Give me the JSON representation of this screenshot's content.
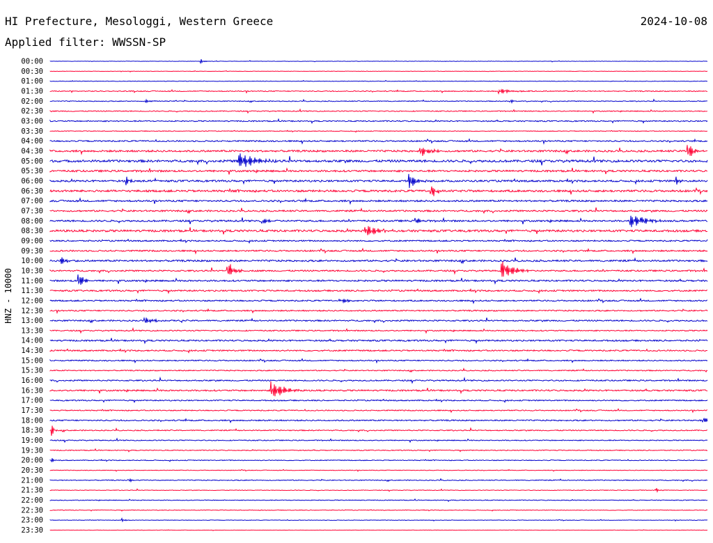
{
  "header": {
    "station": "HI Prefecture, Mesologgi, Western Greece",
    "date": "2024-10-08",
    "filter": "Applied filter: WWSSN-SP"
  },
  "colors": {
    "even_row": "#0000cc",
    "odd_row": "#ff0033"
  },
  "chart_data": {
    "type": "helicorder",
    "ylabel": "HNZ - 10000",
    "row_interval_minutes": 30,
    "row_labels": [
      "00:00",
      "00:30",
      "01:00",
      "01:30",
      "02:00",
      "02:30",
      "03:00",
      "03:30",
      "04:00",
      "04:30",
      "05:00",
      "05:30",
      "06:00",
      "06:30",
      "07:00",
      "07:30",
      "08:00",
      "08:30",
      "09:00",
      "09:30",
      "10:00",
      "10:30",
      "11:00",
      "11:30",
      "12:00",
      "12:30",
      "13:00",
      "13:30",
      "14:00",
      "14:30",
      "15:00",
      "15:30",
      "16:00",
      "16:30",
      "17:00",
      "17:30",
      "18:00",
      "18:30",
      "19:00",
      "19:30",
      "20:00",
      "20:30",
      "21:00",
      "21:30",
      "22:00",
      "22:30",
      "23:00",
      "23:30"
    ],
    "row_noise_level": [
      0.3,
      0.3,
      0.4,
      0.8,
      0.7,
      0.8,
      1.0,
      0.6,
      1.2,
      1.6,
      2.0,
      1.6,
      1.6,
      1.8,
      1.5,
      1.4,
      1.5,
      1.8,
      1.2,
      1.3,
      1.5,
      1.3,
      1.4,
      1.3,
      1.2,
      1.1,
      1.2,
      1.0,
      1.3,
      1.2,
      1.0,
      0.9,
      1.1,
      1.3,
      1.0,
      0.9,
      1.1,
      0.9,
      0.8,
      0.7,
      0.7,
      0.5,
      0.7,
      0.5,
      0.6,
      0.5,
      0.4,
      0.3
    ],
    "events": [
      {
        "row": "00:00",
        "minute": 6.9,
        "amplitude": 3,
        "duration": 0.4
      },
      {
        "row": "02:00",
        "minute": 4.4,
        "amplitude": 2,
        "duration": 1.0
      },
      {
        "row": "02:00",
        "minute": 21.0,
        "amplitude": 4,
        "duration": 0.3
      },
      {
        "row": "01:30",
        "minute": 20.5,
        "amplitude": 4,
        "duration": 1.6
      },
      {
        "row": "04:30",
        "minute": 16.9,
        "amplitude": 10,
        "duration": 1.0
      },
      {
        "row": "04:30",
        "minute": 29.1,
        "amplitude": 16,
        "duration": 0.6
      },
      {
        "row": "05:00",
        "minute": 8.6,
        "amplitude": 14,
        "duration": 1.8
      },
      {
        "row": "06:00",
        "minute": 16.4,
        "amplitude": 14,
        "duration": 0.8
      },
      {
        "row": "06:00",
        "minute": 3.5,
        "amplitude": 6,
        "duration": 0.4
      },
      {
        "row": "06:00",
        "minute": 28.6,
        "amplitude": 6,
        "duration": 0.3
      },
      {
        "row": "06:30",
        "minute": 17.4,
        "amplitude": 12,
        "duration": 0.6
      },
      {
        "row": "08:00",
        "minute": 26.5,
        "amplitude": 12,
        "duration": 1.6
      },
      {
        "row": "08:00",
        "minute": 9.7,
        "amplitude": 6,
        "duration": 0.5
      },
      {
        "row": "08:00",
        "minute": 16.7,
        "amplitude": 6,
        "duration": 0.5
      },
      {
        "row": "08:30",
        "minute": 14.4,
        "amplitude": 10,
        "duration": 1.6
      },
      {
        "row": "10:00",
        "minute": 0.5,
        "amplitude": 6,
        "duration": 0.8
      },
      {
        "row": "10:30",
        "minute": 8.1,
        "amplitude": 14,
        "duration": 0.8
      },
      {
        "row": "10:30",
        "minute": 20.6,
        "amplitude": 16,
        "duration": 1.4
      },
      {
        "row": "11:00",
        "minute": 1.3,
        "amplitude": 14,
        "duration": 0.6
      },
      {
        "row": "12:00",
        "minute": 13.3,
        "amplitude": 4,
        "duration": 1.0
      },
      {
        "row": "13:00",
        "minute": 4.4,
        "amplitude": 4,
        "duration": 1.0
      },
      {
        "row": "16:30",
        "minute": 10.1,
        "amplitude": 16,
        "duration": 1.4
      },
      {
        "row": "18:00",
        "minute": 29.8,
        "amplitude": 8,
        "duration": 0.4
      },
      {
        "row": "18:30",
        "minute": 0.1,
        "amplitude": 10,
        "duration": 0.2
      },
      {
        "row": "20:00",
        "minute": 0.1,
        "amplitude": 4,
        "duration": 0.2
      },
      {
        "row": "21:00",
        "minute": 3.6,
        "amplitude": 4,
        "duration": 0.3
      },
      {
        "row": "21:30",
        "minute": 27.7,
        "amplitude": 3,
        "duration": 0.4
      },
      {
        "row": "23:00",
        "minute": 3.3,
        "amplitude": 3,
        "duration": 0.4
      }
    ]
  }
}
